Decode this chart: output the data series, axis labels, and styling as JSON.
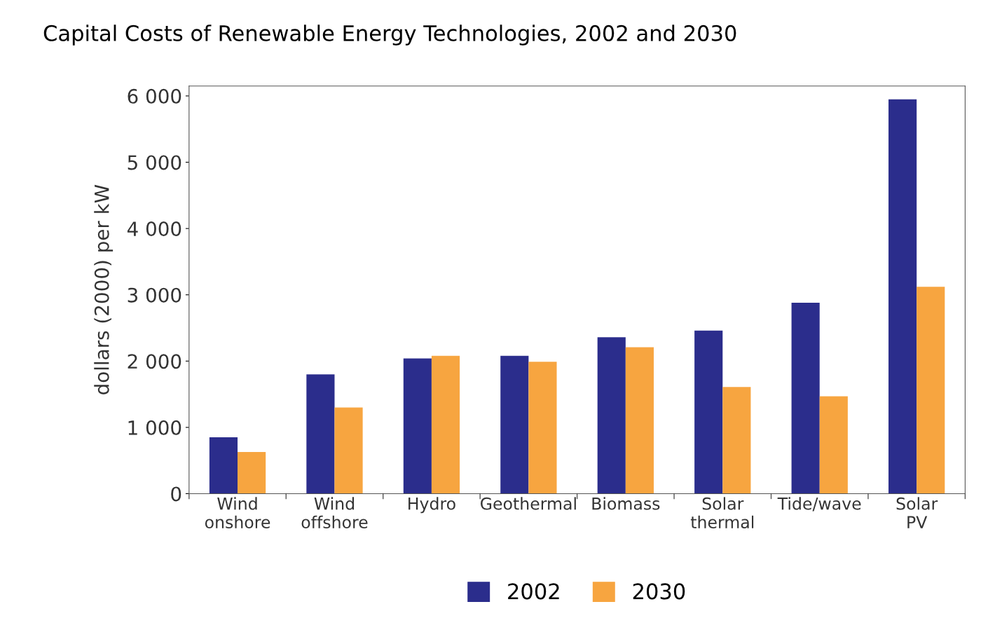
{
  "chart_data": {
    "type": "bar",
    "title": "Capital Costs of Renewable Energy Technologies, 2002 and 2030",
    "ylabel": "dollars (2000) per kW",
    "categories": [
      "Wind\nonshore",
      "Wind\noffshore",
      "Hydro",
      "Geothermal",
      "Biomass",
      "Solar\nthermal",
      "Tide/wave",
      "Solar\nPV"
    ],
    "series": [
      {
        "name": "2002",
        "color": "#2b2d8c",
        "values": [
          850,
          1800,
          2040,
          2080,
          2360,
          2460,
          2880,
          5950
        ]
      },
      {
        "name": "2030",
        "color": "#f7a540",
        "values": [
          630,
          1300,
          2080,
          1990,
          2210,
          1610,
          1470,
          3120
        ]
      }
    ],
    "ylim": [
      0,
      6150
    ],
    "yticks": [
      0,
      {
        "value": 1000,
        "label": "1 000"
      },
      {
        "value": 2000,
        "label": "2 000"
      },
      {
        "value": 3000,
        "label": "3 000"
      },
      {
        "value": 4000,
        "label": "4 000"
      },
      {
        "value": 5000,
        "label": "5 000"
      },
      {
        "value": 6000,
        "label": "6 000"
      }
    ],
    "grid": false,
    "legend": "bottom"
  }
}
